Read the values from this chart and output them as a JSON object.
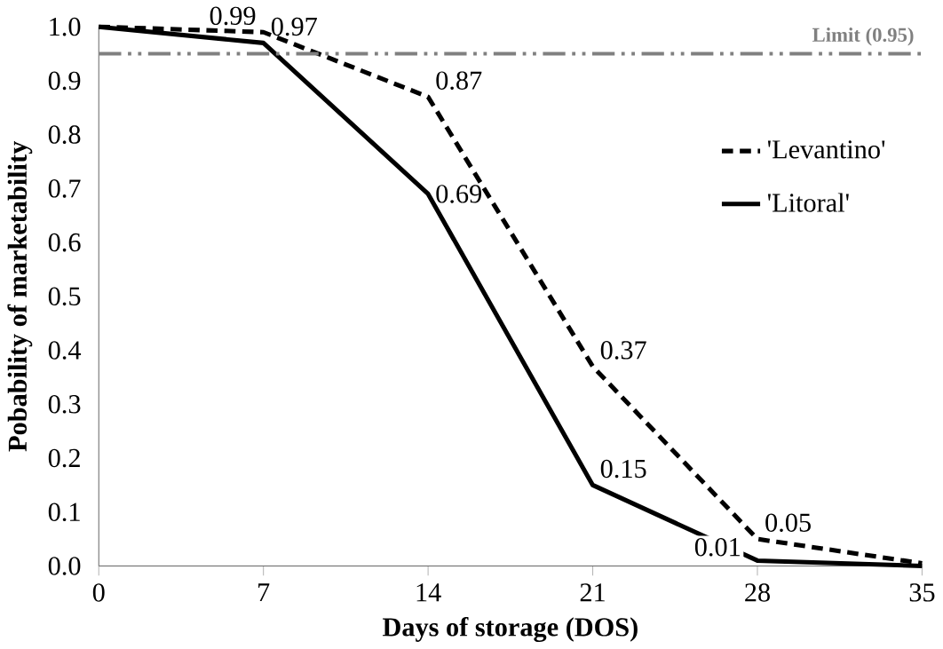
{
  "chart_data": {
    "type": "line",
    "xlabel": "Days of storage (DOS)",
    "ylabel": "Pobability of marketability",
    "x": [
      0,
      7,
      14,
      21,
      28,
      35
    ],
    "series": [
      {
        "name": "'Levantino'",
        "color": "#000000",
        "line_style": "dashed",
        "values": [
          1.0,
          0.99,
          0.87,
          0.37,
          0.05,
          0.005
        ],
        "value_labels": [
          null,
          "0.99",
          "0.87",
          "0.37",
          "0.05",
          null
        ]
      },
      {
        "name": "'Litoral'",
        "color": "#000000",
        "line_style": "solid",
        "values": [
          1.0,
          0.97,
          0.69,
          0.15,
          0.01,
          0.0
        ],
        "value_labels": [
          null,
          "0.97",
          "0.69",
          "0.15",
          "0.01",
          null
        ]
      }
    ],
    "xlim": [
      0,
      35
    ],
    "xticks": [
      0,
      7,
      14,
      21,
      28,
      35
    ],
    "ylim": [
      0,
      1.0
    ],
    "yticks": [
      {
        "value": 0,
        "label": "0.0"
      },
      0.1,
      0.2,
      0.3,
      0.4,
      0.5,
      0.6,
      0.7,
      0.8,
      0.9,
      {
        "value": 1.0,
        "label": "1.0"
      }
    ],
    "ref_lines": [
      {
        "axis": "y",
        "value": 0.95,
        "label": "Limit (0.95)",
        "color": "#808080",
        "line_style": "dashdotdotted"
      }
    ],
    "legend": "right",
    "grid": false,
    "marker": "none"
  }
}
